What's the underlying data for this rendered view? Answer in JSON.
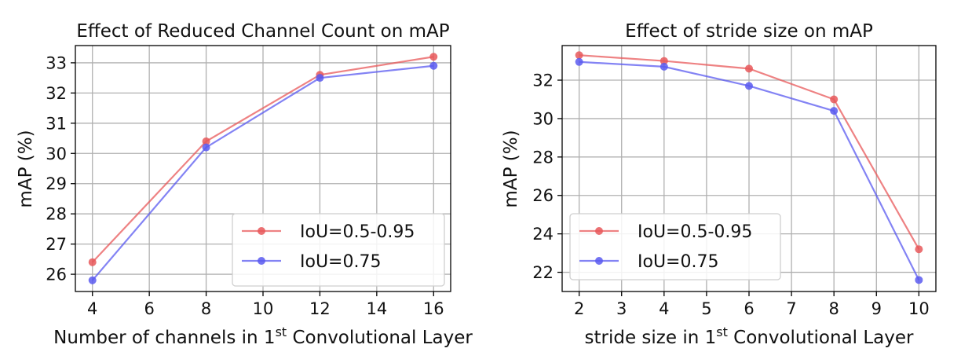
{
  "chart_data": [
    {
      "type": "line",
      "title": "Effect of Reduced Channel Count on mAP",
      "xlabel": {
        "prefix": "Number of channels in 1",
        "sup": "st",
        "suffix": " Convolutional Layer"
      },
      "ylabel": "mAP (%)",
      "x": [
        4,
        8,
        12,
        16
      ],
      "xticks": [
        4,
        6,
        8,
        10,
        12,
        14,
        16
      ],
      "yticks": [
        26,
        27,
        28,
        29,
        30,
        31,
        32,
        33
      ],
      "xlim": [
        3.4,
        16.6
      ],
      "ylim": [
        25.43,
        33.57
      ],
      "legend_position": "lower-right",
      "series": [
        {
          "name": "IoU=0.5-0.95",
          "color": "#e8585a",
          "values": [
            26.4,
            30.4,
            32.6,
            33.2
          ]
        },
        {
          "name": "IoU=0.75",
          "color": "#5a5af0",
          "values": [
            25.8,
            30.2,
            32.5,
            32.9
          ]
        }
      ]
    },
    {
      "type": "line",
      "title": "Effect of stride size on mAP",
      "xlabel": {
        "prefix": "stride size in 1",
        "sup": "st",
        "suffix": " Convolutional Layer"
      },
      "ylabel": "mAP (%)",
      "x": [
        2,
        4,
        6,
        8,
        10
      ],
      "xticks": [
        2,
        3,
        4,
        5,
        6,
        7,
        8,
        9,
        10
      ],
      "yticks": [
        22,
        24,
        26,
        28,
        30,
        32
      ],
      "xlim": [
        1.6,
        10.4
      ],
      "ylim": [
        21.0,
        33.8
      ],
      "legend_position": "lower-left",
      "series": [
        {
          "name": "IoU=0.5-0.95",
          "color": "#e8585a",
          "values": [
            33.3,
            33.0,
            32.6,
            31.0,
            23.2
          ]
        },
        {
          "name": "IoU=0.75",
          "color": "#5a5af0",
          "values": [
            32.95,
            32.7,
            31.7,
            30.4,
            21.6
          ]
        }
      ]
    }
  ]
}
